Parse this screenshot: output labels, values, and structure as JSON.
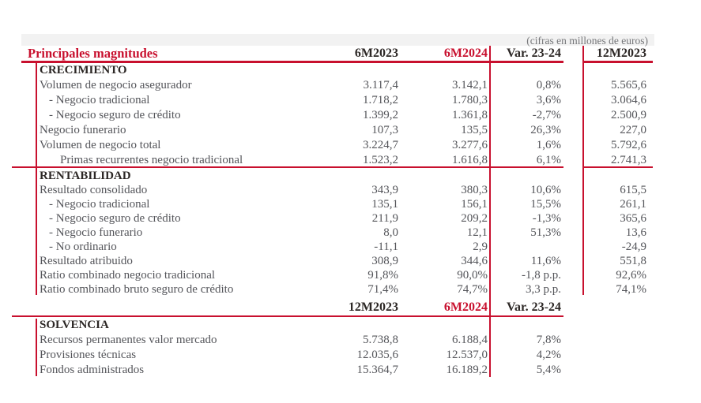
{
  "meta_note": "(cifras en millones de euros)",
  "title": "Principales magnitudes",
  "colors": {
    "accent_red": "#c8102e",
    "dark_text": "#2c2725",
    "gray_text": "#54555a",
    "band_gray": "#f2f2f2"
  },
  "main_table": {
    "columns": [
      "6M2023",
      "6M2024",
      "Var. 23-24",
      "12M2023"
    ],
    "sections": [
      {
        "name": "CRECIMIENTO",
        "rows": [
          {
            "label": "Volumen de negocio asegurador",
            "indent": 0,
            "values": [
              "3.117,4",
              "3.142,1",
              "0,8%",
              "5.565,6"
            ]
          },
          {
            "label": "- Negocio tradicional",
            "indent": 1,
            "values": [
              "1.718,2",
              "1.780,3",
              "3,6%",
              "3.064,6"
            ]
          },
          {
            "label": "- Negocio seguro de crédito",
            "indent": 1,
            "values": [
              "1.399,2",
              "1.361,8",
              "-2,7%",
              "2.500,9"
            ]
          },
          {
            "label": "Negocio funerario",
            "indent": 0,
            "values": [
              "107,3",
              "135,5",
              "26,3%",
              "227,0"
            ]
          },
          {
            "label": "Volumen de negocio total",
            "indent": 0,
            "values": [
              "3.224,7",
              "3.277,6",
              "1,6%",
              "5.792,6"
            ]
          },
          {
            "label": "Primas recurrentes negocio tradicional",
            "indent": 2,
            "values": [
              "1.523,2",
              "1.616,8",
              "6,1%",
              "2.741,3"
            ]
          }
        ]
      },
      {
        "name": "RENTABILIDAD",
        "rows": [
          {
            "label": "Resultado consolidado",
            "indent": 0,
            "values": [
              "343,9",
              "380,3",
              "10,6%",
              "615,5"
            ]
          },
          {
            "label": "- Negocio tradicional",
            "indent": 1,
            "values": [
              "135,1",
              "156,1",
              "15,5%",
              "261,1"
            ]
          },
          {
            "label": "- Negocio seguro de crédito",
            "indent": 1,
            "values": [
              "211,9",
              "209,2",
              "-1,3%",
              "365,6"
            ]
          },
          {
            "label": "- Negocio funerario",
            "indent": 1,
            "values": [
              "8,0",
              "12,1",
              "51,3%",
              "13,6"
            ]
          },
          {
            "label": "- No ordinario",
            "indent": 1,
            "values": [
              "-11,1",
              "2,9",
              "",
              "-24,9"
            ]
          },
          {
            "label": "Resultado atribuido",
            "indent": 0,
            "values": [
              "308,9",
              "344,6",
              "11,6%",
              "551,8"
            ]
          },
          {
            "label": "Ratio combinado negocio tradicional",
            "indent": 0,
            "values": [
              "91,8%",
              "90,0%",
              "-1,8 p.p.",
              "92,6%"
            ]
          },
          {
            "label": "Ratio combinado bruto seguro de crédito",
            "indent": 0,
            "values": [
              "71,4%",
              "74,7%",
              "3,3 p.p.",
              "74,1%"
            ]
          }
        ]
      }
    ]
  },
  "solvency_table": {
    "columns": [
      "12M2023",
      "6M2024",
      "Var. 23-24"
    ],
    "sections": [
      {
        "name": "SOLVENCIA",
        "rows": [
          {
            "label": "Recursos permanentes valor mercado",
            "indent": 0,
            "values": [
              "5.738,8",
              "6.188,4",
              "7,8%"
            ]
          },
          {
            "label": "Provisiones técnicas",
            "indent": 0,
            "values": [
              "12.035,6",
              "12.537,0",
              "4,2%"
            ]
          },
          {
            "label": "Fondos administrados",
            "indent": 0,
            "values": [
              "15.364,7",
              "16.189,2",
              "5,4%"
            ]
          }
        ]
      }
    ]
  }
}
